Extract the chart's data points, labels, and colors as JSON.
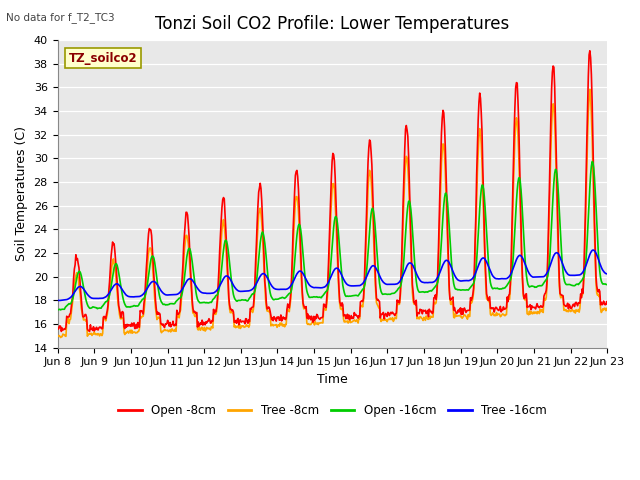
{
  "title": "Tonzi Soil CO2 Profile: Lower Temperatures",
  "no_data_text": "No data for f_T2_TC3",
  "annotation_text": "TZ_soilco2",
  "xlabel": "Time",
  "ylabel": "Soil Temperatures (C)",
  "ylim": [
    14,
    40
  ],
  "yticks": [
    14,
    16,
    18,
    20,
    22,
    24,
    26,
    28,
    30,
    32,
    34,
    36,
    38,
    40
  ],
  "xtick_labels": [
    "Jun 8",
    "Jun 9",
    "Jun 10",
    "Jun 11",
    "Jun 12",
    "Jun 13",
    "Jun 14",
    "Jun 15",
    "Jun 16",
    "Jun 17",
    "Jun 18",
    "Jun 19",
    "Jun 20",
    "Jun 21",
    "Jun 22",
    "Jun 23"
  ],
  "colors": {
    "open_8cm": "#FF0000",
    "tree_8cm": "#FFA500",
    "open_16cm": "#00CC00",
    "tree_16cm": "#0000FF"
  },
  "line_width": 1.2,
  "figure_facecolor": "#FFFFFF",
  "plot_bg_color": "#E8E8E8",
  "grid_color": "#FFFFFF",
  "title_fontsize": 12,
  "axis_fontsize": 9,
  "tick_fontsize": 8,
  "legend_labels": [
    "Open -8cm",
    "Tree -8cm",
    "Open -16cm",
    "Tree -16cm"
  ]
}
